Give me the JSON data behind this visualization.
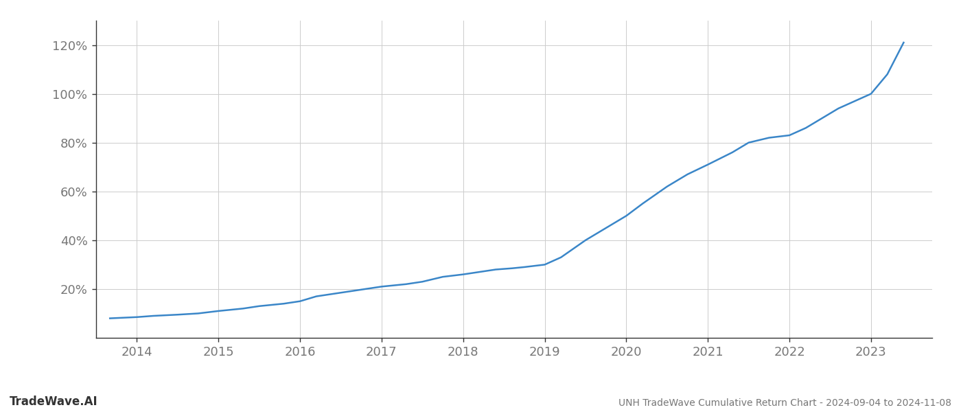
{
  "title": "UNH TradeWave Cumulative Return Chart - 2024-09-04 to 2024-11-08",
  "watermark": "TradeWave.AI",
  "line_color": "#3a86c8",
  "background_color": "#ffffff",
  "grid_color": "#cccccc",
  "x_years": [
    2014,
    2015,
    2016,
    2017,
    2018,
    2019,
    2020,
    2021,
    2022,
    2023
  ],
  "yticks": [
    20,
    40,
    60,
    80,
    100,
    120
  ],
  "ytick_labels": [
    "20%",
    "40%",
    "60%",
    "80%",
    "100%",
    "120%"
  ],
  "ylim": [
    0,
    130
  ],
  "xlim": [
    2013.5,
    2023.75
  ],
  "title_fontsize": 10,
  "watermark_fontsize": 12,
  "tick_fontsize": 13,
  "line_width": 1.8,
  "x_data": [
    2013.67,
    2014.0,
    2014.2,
    2014.5,
    2014.75,
    2015.0,
    2015.3,
    2015.5,
    2015.8,
    2016.0,
    2016.2,
    2016.5,
    2016.8,
    2017.0,
    2017.3,
    2017.5,
    2017.75,
    2018.0,
    2018.2,
    2018.4,
    2018.6,
    2018.75,
    2019.0,
    2019.2,
    2019.5,
    2019.75,
    2020.0,
    2020.2,
    2020.5,
    2020.75,
    2021.0,
    2021.3,
    2021.5,
    2021.75,
    2022.0,
    2022.2,
    2022.4,
    2022.6,
    2022.8,
    2023.0,
    2023.2,
    2023.4
  ],
  "y_data": [
    8,
    8.5,
    9,
    9.5,
    10,
    11,
    12,
    13,
    14,
    15,
    17,
    18.5,
    20,
    21,
    22,
    23,
    25,
    26,
    27,
    28,
    28.5,
    29,
    30,
    33,
    40,
    45,
    50,
    55,
    62,
    67,
    71,
    76,
    80,
    82,
    83,
    86,
    90,
    94,
    97,
    100,
    108,
    121
  ]
}
